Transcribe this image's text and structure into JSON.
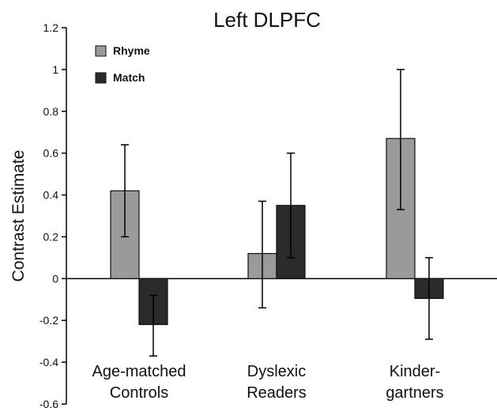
{
  "chart_data": {
    "type": "bar",
    "title": "Left DLPFC",
    "ylabel": "Contrast Estimate",
    "xlabel": "",
    "ylim": [
      -0.6,
      1.2
    ],
    "yticks": [
      1.2,
      1,
      0.8,
      0.6,
      0.4,
      0.2,
      0,
      -0.2,
      -0.4,
      -0.6
    ],
    "ytick_labels": [
      "1.2",
      "1",
      "0.8",
      "0.6",
      "0.4",
      "0.2",
      "0",
      "-0.2",
      "-0.4",
      "-0.6"
    ],
    "categories": [
      [
        "Age-matched",
        "Controls"
      ],
      [
        "Dyslexic",
        "Readers"
      ],
      [
        "Kinder-",
        "gartners"
      ]
    ],
    "series": [
      {
        "name": "Rhyme",
        "color": "#9a9a9a",
        "values": [
          0.42,
          0.12,
          0.67
        ],
        "error_low": [
          0.2,
          -0.14,
          0.33
        ],
        "error_high": [
          0.64,
          0.37,
          1.0
        ]
      },
      {
        "name": "Match",
        "color": "#2b2b2b",
        "values": [
          -0.22,
          0.35,
          -0.095
        ],
        "error_low": [
          -0.37,
          0.1,
          -0.29
        ],
        "error_high": [
          -0.08,
          0.6,
          0.1
        ]
      }
    ],
    "legend": "top-left",
    "grid": false
  }
}
